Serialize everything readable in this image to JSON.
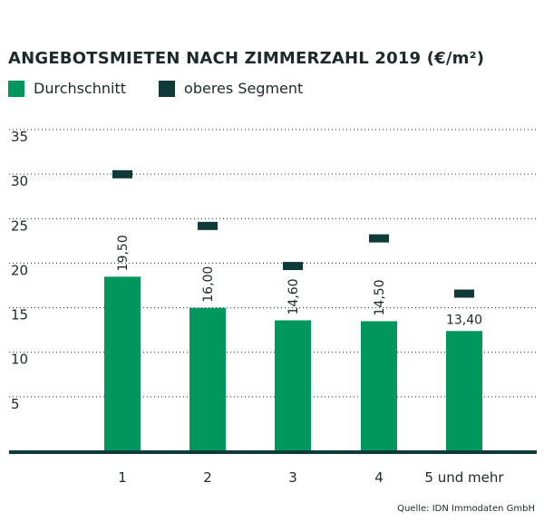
{
  "chart_data": {
    "type": "bar",
    "title": "ANGEBOTSMIETEN NACH ZIMMERZAHL 2019 (€/m²)",
    "xlabel": "",
    "ylabel": "",
    "categories": [
      "1",
      "2",
      "3",
      "4",
      "5 und mehr"
    ],
    "series": [
      {
        "name": "Durchschnitt",
        "kind": "bar",
        "color": "#00975f",
        "values": [
          19.5,
          16.0,
          14.6,
          14.5,
          13.4
        ],
        "labels": [
          "19,50",
          "16,00",
          "14,60",
          "14,50",
          "13,40"
        ]
      },
      {
        "name": "oberes Segment",
        "kind": "marker",
        "color": "#0f3a3a",
        "values": [
          31.0,
          25.2,
          20.7,
          23.8,
          17.6
        ]
      }
    ],
    "ylim": [
      0,
      35
    ],
    "yticks": [
      5,
      10,
      15,
      20,
      25,
      30,
      35
    ],
    "grid": true,
    "legend_position": "top-left",
    "source": "Quelle: IDN Immodaten GmbH"
  }
}
